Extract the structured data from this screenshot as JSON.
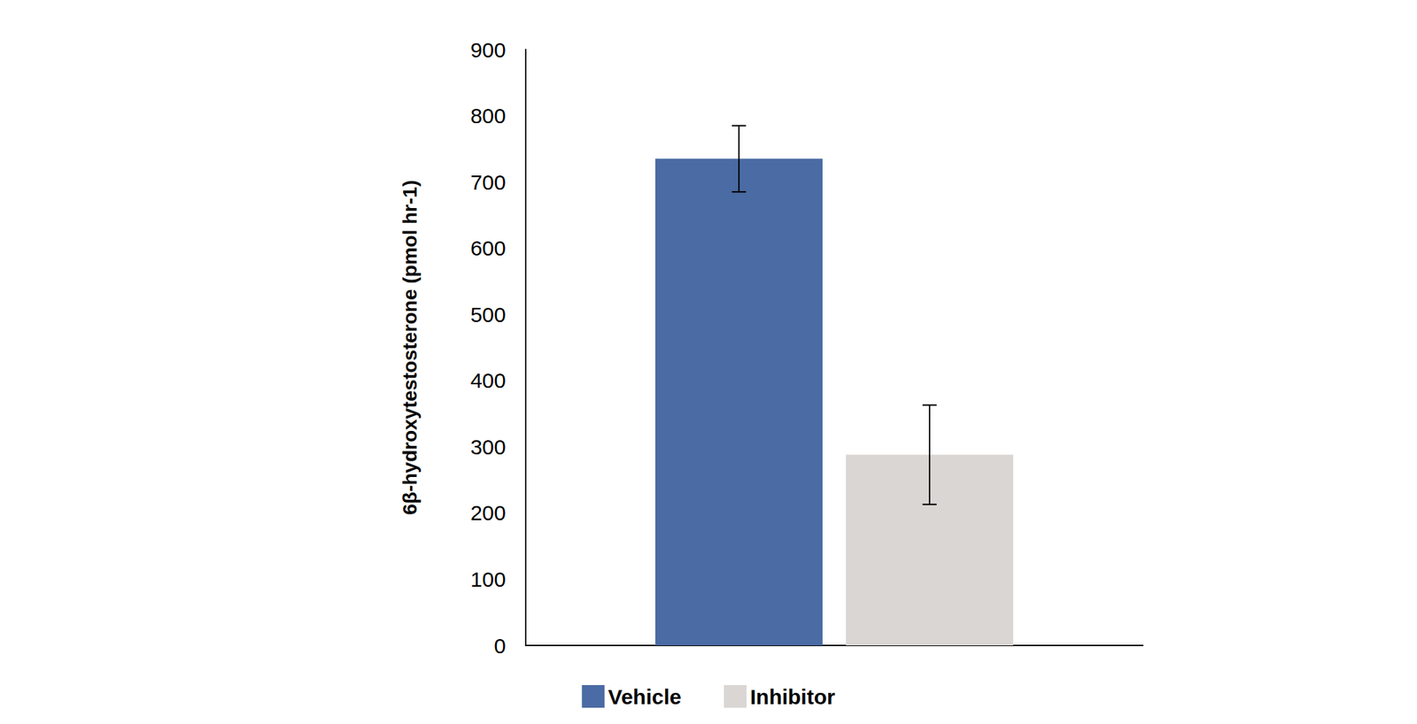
{
  "chart_data": {
    "type": "bar",
    "y_label": "6β-hydroxytestosterone (pmol hr-1)",
    "categories": [
      null
    ],
    "series": [
      {
        "name": "Vehicle",
        "color": "#4a6ba3",
        "values": [
          735
        ],
        "errors": [
          50
        ]
      },
      {
        "name": "Inhibitor",
        "color": "#d9d6d3",
        "values": [
          288
        ],
        "errors": [
          75
        ]
      }
    ],
    "ylim": [
      0,
      900
    ],
    "yticks": [
      0,
      100,
      200,
      300,
      400,
      500,
      600,
      700,
      800,
      900
    ],
    "grid": false,
    "legend": "bottom",
    "tick_labels": "y"
  }
}
